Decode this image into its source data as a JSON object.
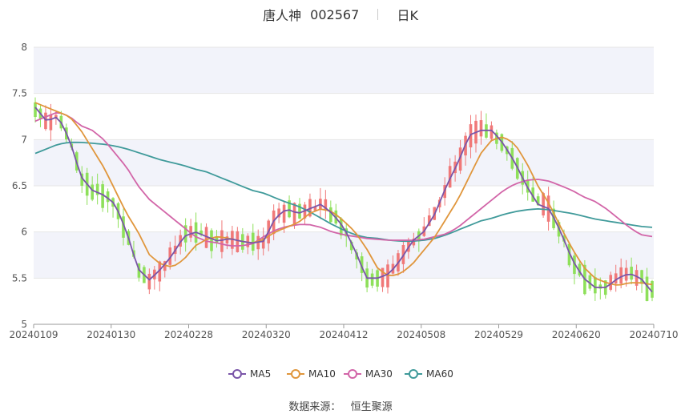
{
  "title": {
    "stock_name": "唐人神",
    "stock_code": "002567",
    "period": "日K"
  },
  "footer": {
    "source_label": "数据来源：",
    "source_name": "恒生聚源"
  },
  "colors": {
    "up": "#f07878",
    "down": "#8ee05a",
    "ma5": "#7a55a8",
    "ma10": "#e0963c",
    "ma30": "#d265a8",
    "ma60": "#3f9a9a",
    "band": "#f2f3fa",
    "grid": "#e6e6e6",
    "axis_text": "#555555"
  },
  "chart_data": {
    "type": "candlestick",
    "title": "唐人神 002567 日K",
    "ylim": [
      5,
      8
    ],
    "yticks": [
      "5",
      "5.5",
      "6",
      "6.5",
      "7",
      "7.5",
      "8"
    ],
    "xtick_labels": [
      "20240109",
      "20240130",
      "20240228",
      "20240320",
      "20240412",
      "20240508",
      "20240529",
      "20240620",
      "20240710"
    ],
    "legend": [
      "MA5",
      "MA10",
      "MA30",
      "MA60"
    ],
    "legend_position": "bottom-center",
    "ma5_key": [
      7.35,
      7.2,
      7.25,
      7.0,
      6.6,
      6.45,
      6.4,
      6.3,
      6.0,
      5.6,
      5.48,
      5.6,
      5.75,
      5.95,
      6.0,
      5.95,
      5.9,
      5.93,
      5.9,
      5.88,
      5.9,
      6.15,
      6.25,
      6.2,
      6.25,
      6.3,
      6.2,
      6.05,
      5.8,
      5.5,
      5.5,
      5.55,
      5.7,
      5.9,
      6.0,
      6.2,
      6.5,
      6.75,
      7.05,
      7.1,
      7.1,
      6.95,
      6.75,
      6.5,
      6.3,
      6.25,
      6.0,
      5.7,
      5.5,
      5.4,
      5.4,
      5.5,
      5.55,
      5.5,
      5.35
    ],
    "ma10_key": [
      7.4,
      7.35,
      7.3,
      7.25,
      7.1,
      6.9,
      6.7,
      6.45,
      6.2,
      6.0,
      5.75,
      5.65,
      5.62,
      5.7,
      5.85,
      5.92,
      5.95,
      5.93,
      5.9,
      5.88,
      5.92,
      6.0,
      6.05,
      6.1,
      6.2,
      6.25,
      6.22,
      6.12,
      6.0,
      5.82,
      5.6,
      5.52,
      5.55,
      5.65,
      5.8,
      5.95,
      6.15,
      6.35,
      6.6,
      6.85,
      7.0,
      7.03,
      6.95,
      6.75,
      6.5,
      6.3,
      6.05,
      5.82,
      5.62,
      5.5,
      5.45,
      5.42,
      5.45,
      5.45,
      5.43
    ],
    "ma30_key": [
      7.2,
      7.25,
      7.3,
      7.25,
      7.15,
      7.1,
      7.0,
      6.85,
      6.7,
      6.5,
      6.35,
      6.25,
      6.15,
      6.05,
      5.95,
      5.9,
      5.88,
      5.85,
      5.85,
      5.87,
      5.95,
      6.02,
      6.06,
      6.08,
      6.08,
      6.05,
      6.0,
      5.97,
      5.95,
      5.93,
      5.92,
      5.91,
      5.91,
      5.91,
      5.92,
      5.95,
      5.98,
      6.05,
      6.15,
      6.25,
      6.35,
      6.45,
      6.52,
      6.56,
      6.57,
      6.55,
      6.5,
      6.45,
      6.38,
      6.33,
      6.25,
      6.15,
      6.05,
      5.97,
      5.95
    ],
    "ma60_key": [
      6.85,
      6.9,
      6.95,
      6.97,
      6.97,
      6.96,
      6.95,
      6.93,
      6.9,
      6.86,
      6.82,
      6.78,
      6.75,
      6.72,
      6.68,
      6.65,
      6.6,
      6.55,
      6.5,
      6.45,
      6.42,
      6.37,
      6.32,
      6.28,
      6.22,
      6.15,
      6.08,
      6.02,
      5.97,
      5.94,
      5.93,
      5.91,
      5.9,
      5.9,
      5.91,
      5.93,
      5.97,
      6.02,
      6.07,
      6.12,
      6.15,
      6.19,
      6.22,
      6.24,
      6.25,
      6.24,
      6.22,
      6.2,
      6.17,
      6.14,
      6.12,
      6.1,
      6.08,
      6.06,
      6.05
    ]
  }
}
